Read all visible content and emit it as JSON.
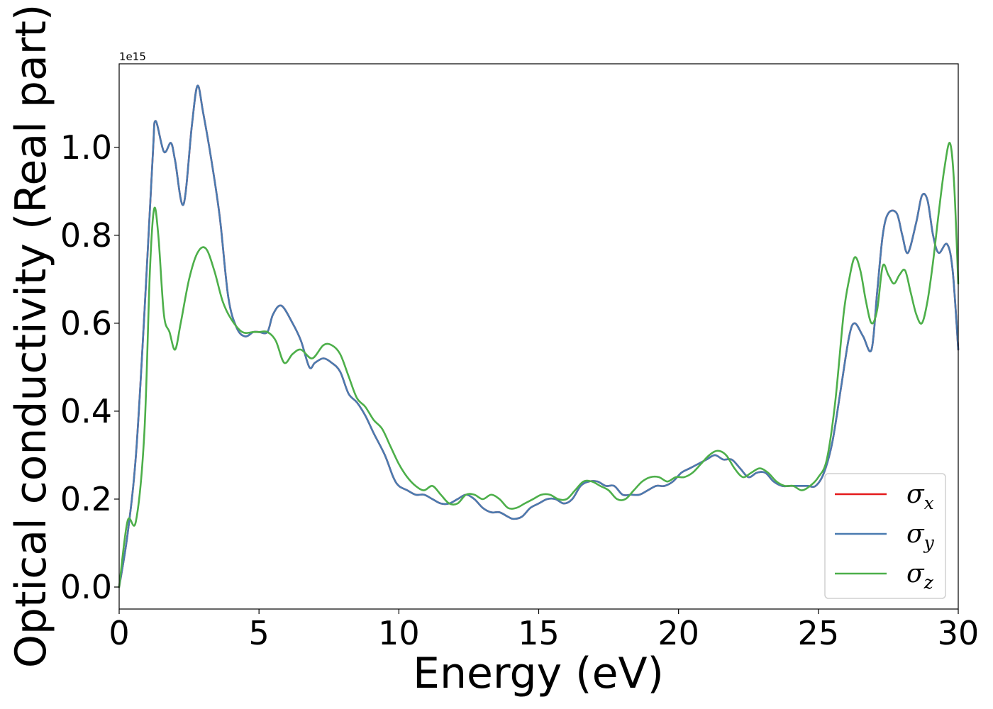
{
  "chart_data": {
    "type": "line",
    "xlabel": "Energy (eV)",
    "ylabel": "Optical conductivity (Real part)",
    "y_offset_label": "1e15",
    "xlim": [
      0,
      30
    ],
    "ylim": [
      -0.05,
      1.19
    ],
    "xticks": [
      0,
      5,
      10,
      15,
      20,
      25,
      30
    ],
    "xtick_labels": [
      "0",
      "5",
      "10",
      "15",
      "20",
      "25",
      "30"
    ],
    "yticks": [
      0.0,
      0.2,
      0.4,
      0.6,
      0.8,
      1.0
    ],
    "ytick_labels": [
      "0.0",
      "0.2",
      "0.4",
      "0.6",
      "0.8",
      "1.0"
    ],
    "grid": false,
    "legend_position": "lower-right",
    "series": [
      {
        "name": "σx",
        "name_base": "σ",
        "name_sub": "x",
        "color": "#e41a1c",
        "x": [
          0,
          0.3,
          0.6,
          0.9,
          1.2,
          1.3,
          1.6,
          1.85,
          2.0,
          2.3,
          2.6,
          2.8,
          3.0,
          3.3,
          3.6,
          3.9,
          4.2,
          4.5,
          4.8,
          5.0,
          5.3,
          5.5,
          5.8,
          6.2,
          6.5,
          6.8,
          7.0,
          7.3,
          7.6,
          7.9,
          8.2,
          8.5,
          8.8,
          9.1,
          9.5,
          9.8,
          10.0,
          10.3,
          10.6,
          10.9,
          11.2,
          11.5,
          11.8,
          12.1,
          12.4,
          12.7,
          13.0,
          13.3,
          13.6,
          13.9,
          14.1,
          14.4,
          14.7,
          15.0,
          15.3,
          15.6,
          15.9,
          16.2,
          16.5,
          16.8,
          17.1,
          17.4,
          17.7,
          18.0,
          18.3,
          18.6,
          18.9,
          19.2,
          19.5,
          19.8,
          20.1,
          20.4,
          20.7,
          21.0,
          21.3,
          21.6,
          21.9,
          22.2,
          22.5,
          22.8,
          23.1,
          23.4,
          23.7,
          24.0,
          24.3,
          24.6,
          24.9,
          25.2,
          25.5,
          25.8,
          26.1,
          26.3,
          26.6,
          26.9,
          27.1,
          27.3,
          27.5,
          27.8,
          28.0,
          28.2,
          28.5,
          28.7,
          28.9,
          29.1,
          29.3,
          29.6,
          29.8,
          30.0
        ],
        "y": [
          0.0,
          0.12,
          0.3,
          0.62,
          0.98,
          1.06,
          0.99,
          1.01,
          0.97,
          0.87,
          1.05,
          1.14,
          1.08,
          0.97,
          0.84,
          0.66,
          0.59,
          0.57,
          0.58,
          0.58,
          0.58,
          0.62,
          0.64,
          0.6,
          0.56,
          0.5,
          0.51,
          0.52,
          0.51,
          0.49,
          0.44,
          0.42,
          0.39,
          0.35,
          0.3,
          0.25,
          0.23,
          0.22,
          0.21,
          0.21,
          0.2,
          0.19,
          0.19,
          0.2,
          0.21,
          0.2,
          0.18,
          0.17,
          0.17,
          0.16,
          0.155,
          0.16,
          0.18,
          0.19,
          0.2,
          0.2,
          0.19,
          0.2,
          0.23,
          0.24,
          0.24,
          0.23,
          0.23,
          0.21,
          0.21,
          0.21,
          0.22,
          0.23,
          0.23,
          0.24,
          0.26,
          0.27,
          0.28,
          0.29,
          0.3,
          0.29,
          0.29,
          0.27,
          0.25,
          0.26,
          0.26,
          0.24,
          0.23,
          0.23,
          0.23,
          0.23,
          0.23,
          0.26,
          0.33,
          0.45,
          0.57,
          0.6,
          0.57,
          0.54,
          0.67,
          0.8,
          0.85,
          0.85,
          0.8,
          0.76,
          0.83,
          0.89,
          0.88,
          0.8,
          0.76,
          0.78,
          0.72,
          0.54
        ]
      },
      {
        "name": "σy",
        "name_base": "σ",
        "name_sub": "y",
        "color": "#4a7bb0",
        "x": [
          0,
          0.3,
          0.6,
          0.9,
          1.2,
          1.3,
          1.6,
          1.85,
          2.0,
          2.3,
          2.6,
          2.8,
          3.0,
          3.3,
          3.6,
          3.9,
          4.2,
          4.5,
          4.8,
          5.0,
          5.3,
          5.5,
          5.8,
          6.2,
          6.5,
          6.8,
          7.0,
          7.3,
          7.6,
          7.9,
          8.2,
          8.5,
          8.8,
          9.1,
          9.5,
          9.8,
          10.0,
          10.3,
          10.6,
          10.9,
          11.2,
          11.5,
          11.8,
          12.1,
          12.4,
          12.7,
          13.0,
          13.3,
          13.6,
          13.9,
          14.1,
          14.4,
          14.7,
          15.0,
          15.3,
          15.6,
          15.9,
          16.2,
          16.5,
          16.8,
          17.1,
          17.4,
          17.7,
          18.0,
          18.3,
          18.6,
          18.9,
          19.2,
          19.5,
          19.8,
          20.1,
          20.4,
          20.7,
          21.0,
          21.3,
          21.6,
          21.9,
          22.2,
          22.5,
          22.8,
          23.1,
          23.4,
          23.7,
          24.0,
          24.3,
          24.6,
          24.9,
          25.2,
          25.5,
          25.8,
          26.1,
          26.3,
          26.6,
          26.9,
          27.1,
          27.3,
          27.5,
          27.8,
          28.0,
          28.2,
          28.5,
          28.7,
          28.9,
          29.1,
          29.3,
          29.6,
          29.8,
          30.0
        ],
        "y": [
          0.0,
          0.12,
          0.3,
          0.62,
          0.98,
          1.06,
          0.99,
          1.01,
          0.97,
          0.87,
          1.05,
          1.14,
          1.08,
          0.97,
          0.84,
          0.66,
          0.59,
          0.57,
          0.58,
          0.58,
          0.58,
          0.62,
          0.64,
          0.6,
          0.56,
          0.5,
          0.51,
          0.52,
          0.51,
          0.49,
          0.44,
          0.42,
          0.39,
          0.35,
          0.3,
          0.25,
          0.23,
          0.22,
          0.21,
          0.21,
          0.2,
          0.19,
          0.19,
          0.2,
          0.21,
          0.2,
          0.18,
          0.17,
          0.17,
          0.16,
          0.155,
          0.16,
          0.18,
          0.19,
          0.2,
          0.2,
          0.19,
          0.2,
          0.23,
          0.24,
          0.24,
          0.23,
          0.23,
          0.21,
          0.21,
          0.21,
          0.22,
          0.23,
          0.23,
          0.24,
          0.26,
          0.27,
          0.28,
          0.29,
          0.3,
          0.29,
          0.29,
          0.27,
          0.25,
          0.26,
          0.26,
          0.24,
          0.23,
          0.23,
          0.23,
          0.23,
          0.23,
          0.26,
          0.33,
          0.45,
          0.57,
          0.6,
          0.57,
          0.54,
          0.67,
          0.8,
          0.85,
          0.85,
          0.8,
          0.76,
          0.83,
          0.89,
          0.88,
          0.8,
          0.76,
          0.78,
          0.72,
          0.54
        ]
      },
      {
        "name": "σz",
        "name_base": "σ",
        "name_sub": "z",
        "color": "#4daf4a",
        "x": [
          0,
          0.3,
          0.6,
          0.9,
          1.1,
          1.25,
          1.4,
          1.6,
          1.8,
          2.0,
          2.2,
          2.5,
          2.8,
          3.1,
          3.4,
          3.7,
          4.0,
          4.4,
          4.8,
          5.0,
          5.3,
          5.6,
          5.9,
          6.2,
          6.5,
          6.9,
          7.3,
          7.6,
          7.9,
          8.2,
          8.5,
          8.8,
          9.1,
          9.4,
          9.7,
          10.0,
          10.3,
          10.6,
          10.9,
          11.2,
          11.5,
          11.8,
          12.1,
          12.4,
          12.7,
          13.0,
          13.3,
          13.6,
          13.9,
          14.2,
          14.5,
          14.8,
          15.1,
          15.4,
          15.7,
          16.0,
          16.3,
          16.6,
          16.9,
          17.2,
          17.5,
          17.8,
          18.1,
          18.4,
          18.7,
          19.0,
          19.3,
          19.6,
          19.9,
          20.2,
          20.5,
          20.8,
          21.1,
          21.4,
          21.7,
          22.0,
          22.3,
          22.6,
          22.9,
          23.2,
          23.5,
          23.8,
          24.1,
          24.4,
          24.7,
          25.0,
          25.3,
          25.6,
          25.9,
          26.1,
          26.3,
          26.5,
          26.7,
          26.9,
          27.1,
          27.3,
          27.5,
          27.7,
          27.9,
          28.1,
          28.3,
          28.5,
          28.7,
          28.9,
          29.1,
          29.3,
          29.5,
          29.7,
          29.85,
          30.0
        ],
        "y": [
          0.0,
          0.15,
          0.15,
          0.35,
          0.72,
          0.86,
          0.8,
          0.62,
          0.58,
          0.54,
          0.6,
          0.7,
          0.76,
          0.77,
          0.72,
          0.65,
          0.61,
          0.58,
          0.58,
          0.58,
          0.58,
          0.56,
          0.51,
          0.53,
          0.54,
          0.52,
          0.55,
          0.55,
          0.53,
          0.48,
          0.43,
          0.41,
          0.38,
          0.36,
          0.32,
          0.28,
          0.25,
          0.23,
          0.22,
          0.23,
          0.21,
          0.19,
          0.19,
          0.21,
          0.21,
          0.2,
          0.21,
          0.2,
          0.18,
          0.18,
          0.19,
          0.2,
          0.21,
          0.21,
          0.2,
          0.2,
          0.22,
          0.24,
          0.24,
          0.23,
          0.22,
          0.2,
          0.2,
          0.22,
          0.24,
          0.25,
          0.25,
          0.24,
          0.25,
          0.25,
          0.26,
          0.28,
          0.3,
          0.31,
          0.3,
          0.27,
          0.25,
          0.26,
          0.27,
          0.26,
          0.24,
          0.23,
          0.23,
          0.22,
          0.23,
          0.25,
          0.29,
          0.42,
          0.62,
          0.7,
          0.75,
          0.72,
          0.65,
          0.6,
          0.63,
          0.73,
          0.71,
          0.69,
          0.71,
          0.72,
          0.67,
          0.62,
          0.6,
          0.65,
          0.74,
          0.85,
          0.95,
          1.01,
          0.92,
          0.69
        ]
      }
    ]
  }
}
